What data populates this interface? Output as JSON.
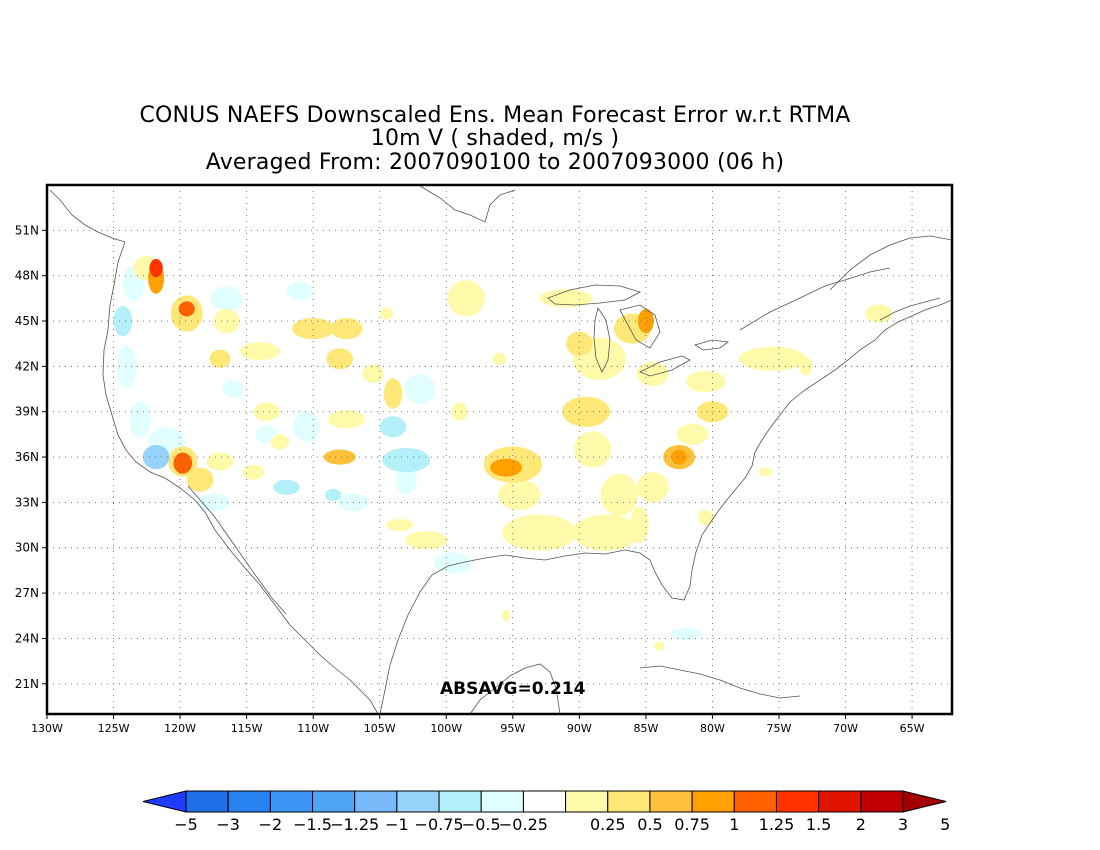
{
  "title": {
    "line1": "CONUS NAEFS Downscaled Ens. Mean Forecast Error w.r.t RTMA",
    "line2": "10m V ( shaded, m/s )",
    "line3": "Averaged From: 2007090100 to 2007093000 (06 h)"
  },
  "map": {
    "lon_range": [
      -130,
      -62
    ],
    "lat_range": [
      19,
      54
    ],
    "lat_ticks": [
      {
        "lat": 51,
        "label": "51N"
      },
      {
        "lat": 48,
        "label": "48N"
      },
      {
        "lat": 45,
        "label": "45N"
      },
      {
        "lat": 42,
        "label": "42N"
      },
      {
        "lat": 39,
        "label": "39N"
      },
      {
        "lat": 36,
        "label": "36N"
      },
      {
        "lat": 33,
        "label": "33N"
      },
      {
        "lat": 30,
        "label": "30N"
      },
      {
        "lat": 27,
        "label": "27N"
      },
      {
        "lat": 24,
        "label": "24N"
      },
      {
        "lat": 21,
        "label": "21N"
      }
    ],
    "lon_ticks": [
      {
        "lon": -130,
        "label": "130W"
      },
      {
        "lon": -125,
        "label": "125W"
      },
      {
        "lon": -120,
        "label": "120W"
      },
      {
        "lon": -115,
        "label": "115W"
      },
      {
        "lon": -110,
        "label": "110W"
      },
      {
        "lon": -105,
        "label": "105W"
      },
      {
        "lon": -100,
        "label": "100W"
      },
      {
        "lon": -95,
        "label": "95W"
      },
      {
        "lon": -90,
        "label": "90W"
      },
      {
        "lon": -85,
        "label": "85W"
      },
      {
        "lon": -80,
        "label": "80W"
      },
      {
        "lon": -75,
        "label": "75W"
      },
      {
        "lon": -70,
        "label": "70W"
      },
      {
        "lon": -65,
        "label": "65W"
      }
    ],
    "grid": true,
    "annotation": "ABSAVG=0.214"
  },
  "colorbar": {
    "units": "m/s",
    "labels": [
      "−5",
      "−3",
      "−2",
      "−1.5",
      "−1.25",
      "−1",
      "−0.75",
      "−0.5",
      "−0.25",
      "0.25",
      "0.5",
      "0.75",
      "1",
      "1.25",
      "1.5",
      "2",
      "3",
      "5"
    ],
    "colors": [
      "#1e3cff",
      "#1e6ee6",
      "#2882f0",
      "#3c96f5",
      "#50a5f5",
      "#78b9fa",
      "#96d2fa",
      "#b4f0fa",
      "#e1ffff",
      "#ffffff",
      "#fffaaa",
      "#ffe878",
      "#ffc03c",
      "#ffa000",
      "#ff6000",
      "#ff3200",
      "#e11400",
      "#c00000",
      "#a50000"
    ]
  },
  "blobs": [
    {
      "lon": -123.5,
      "lat": 47.5,
      "rx": 0.8,
      "ry": 1.2,
      "level": -1
    },
    {
      "lon": -124.3,
      "lat": 45.0,
      "rx": 0.7,
      "ry": 1.0,
      "level": -2
    },
    {
      "lon": -124.0,
      "lat": 42.0,
      "rx": 0.7,
      "ry": 1.4,
      "level": -1
    },
    {
      "lon": -123.0,
      "lat": 38.5,
      "rx": 0.8,
      "ry": 1.2,
      "level": -1
    },
    {
      "lon": -121.8,
      "lat": 36.0,
      "rx": 1.0,
      "ry": 0.8,
      "level": -3
    },
    {
      "lon": -121.0,
      "lat": 37.0,
      "rx": 1.4,
      "ry": 1.0,
      "level": -1
    },
    {
      "lon": -117.5,
      "lat": 33.0,
      "rx": 1.2,
      "ry": 0.6,
      "level": -1
    },
    {
      "lon": -116.0,
      "lat": 40.5,
      "rx": 0.8,
      "ry": 0.6,
      "level": -1
    },
    {
      "lon": -113.5,
      "lat": 37.5,
      "rx": 0.8,
      "ry": 0.6,
      "level": -1
    },
    {
      "lon": -110.5,
      "lat": 38.0,
      "rx": 1.0,
      "ry": 1.0,
      "level": -1
    },
    {
      "lon": -112.0,
      "lat": 34.0,
      "rx": 1.0,
      "ry": 0.5,
      "level": -2
    },
    {
      "lon": -107.0,
      "lat": 33.0,
      "rx": 1.2,
      "ry": 0.6,
      "level": -1
    },
    {
      "lon": -104.0,
      "lat": 38.0,
      "rx": 1.0,
      "ry": 0.7,
      "level": -2
    },
    {
      "lon": -103.0,
      "lat": 35.8,
      "rx": 1.8,
      "ry": 0.8,
      "level": -2
    },
    {
      "lon": -103.0,
      "lat": 34.5,
      "rx": 0.8,
      "ry": 1.0,
      "level": -1
    },
    {
      "lon": -102.0,
      "lat": 40.5,
      "rx": 1.2,
      "ry": 1.0,
      "level": -1
    },
    {
      "lon": -99.5,
      "lat": 29.0,
      "rx": 1.4,
      "ry": 0.7,
      "level": -1
    },
    {
      "lon": -111.0,
      "lat": 47.0,
      "rx": 1.0,
      "ry": 0.6,
      "level": -1
    },
    {
      "lon": -116.5,
      "lat": 46.5,
      "rx": 1.2,
      "ry": 0.8,
      "level": -1
    },
    {
      "lon": -82.0,
      "lat": 24.3,
      "rx": 1.2,
      "ry": 0.4,
      "level": -1
    },
    {
      "lon": -108.5,
      "lat": 33.5,
      "rx": 0.6,
      "ry": 0.4,
      "level": -2
    },
    {
      "lon": -122.5,
      "lat": 48.5,
      "rx": 1.0,
      "ry": 0.8,
      "level": 1
    },
    {
      "lon": -121.8,
      "lat": 47.8,
      "rx": 0.6,
      "ry": 1.0,
      "level": 4
    },
    {
      "lon": -121.8,
      "lat": 48.5,
      "rx": 0.5,
      "ry": 0.6,
      "level": 6
    },
    {
      "lon": -119.5,
      "lat": 45.5,
      "rx": 1.2,
      "ry": 1.2,
      "level": 2
    },
    {
      "lon": -119.5,
      "lat": 45.8,
      "rx": 0.6,
      "ry": 0.5,
      "level": 5
    },
    {
      "lon": -116.5,
      "lat": 45.0,
      "rx": 1.0,
      "ry": 0.8,
      "level": 1
    },
    {
      "lon": -114.0,
      "lat": 43.0,
      "rx": 1.5,
      "ry": 0.6,
      "level": 1
    },
    {
      "lon": -117.0,
      "lat": 42.5,
      "rx": 0.8,
      "ry": 0.6,
      "level": 2
    },
    {
      "lon": -110.0,
      "lat": 44.5,
      "rx": 1.6,
      "ry": 0.7,
      "level": 2
    },
    {
      "lon": -107.5,
      "lat": 44.5,
      "rx": 1.2,
      "ry": 0.7,
      "level": 2
    },
    {
      "lon": -108.0,
      "lat": 42.5,
      "rx": 1.0,
      "ry": 0.7,
      "level": 2
    },
    {
      "lon": -105.5,
      "lat": 41.5,
      "rx": 0.8,
      "ry": 0.6,
      "level": 1
    },
    {
      "lon": -104.0,
      "lat": 40.2,
      "rx": 0.7,
      "ry": 1.0,
      "level": 2
    },
    {
      "lon": -98.5,
      "lat": 46.5,
      "rx": 1.4,
      "ry": 1.2,
      "level": 1
    },
    {
      "lon": -107.5,
      "lat": 38.5,
      "rx": 1.4,
      "ry": 0.6,
      "level": 1
    },
    {
      "lon": -108.0,
      "lat": 36.0,
      "rx": 1.2,
      "ry": 0.5,
      "level": 3
    },
    {
      "lon": -113.5,
      "lat": 39.0,
      "rx": 1.0,
      "ry": 0.6,
      "level": 1
    },
    {
      "lon": -119.8,
      "lat": 35.7,
      "rx": 1.1,
      "ry": 1.0,
      "level": 2
    },
    {
      "lon": -119.8,
      "lat": 35.6,
      "rx": 0.7,
      "ry": 0.7,
      "level": 5
    },
    {
      "lon": -118.5,
      "lat": 34.5,
      "rx": 1.0,
      "ry": 0.8,
      "level": 2
    },
    {
      "lon": -117.0,
      "lat": 35.7,
      "rx": 1.0,
      "ry": 0.6,
      "level": 1
    },
    {
      "lon": -114.5,
      "lat": 35.0,
      "rx": 0.8,
      "ry": 0.5,
      "level": 1
    },
    {
      "lon": -112.5,
      "lat": 37.0,
      "rx": 0.7,
      "ry": 0.5,
      "level": 1
    },
    {
      "lon": -103.5,
      "lat": 31.5,
      "rx": 1.0,
      "ry": 0.4,
      "level": 1
    },
    {
      "lon": -101.5,
      "lat": 30.5,
      "rx": 1.6,
      "ry": 0.6,
      "level": 1
    },
    {
      "lon": -95.0,
      "lat": 35.5,
      "rx": 2.2,
      "ry": 1.2,
      "level": 2
    },
    {
      "lon": -95.5,
      "lat": 35.3,
      "rx": 1.2,
      "ry": 0.6,
      "level": 4
    },
    {
      "lon": -94.5,
      "lat": 33.5,
      "rx": 1.6,
      "ry": 1.0,
      "level": 1
    },
    {
      "lon": -93.0,
      "lat": 31.0,
      "rx": 2.8,
      "ry": 1.2,
      "level": 1
    },
    {
      "lon": -88.0,
      "lat": 31.0,
      "rx": 2.5,
      "ry": 1.2,
      "level": 1
    },
    {
      "lon": -87.0,
      "lat": 33.5,
      "rx": 1.4,
      "ry": 1.4,
      "level": 1
    },
    {
      "lon": -89.0,
      "lat": 36.5,
      "rx": 1.4,
      "ry": 1.2,
      "level": 1
    },
    {
      "lon": -89.5,
      "lat": 39.0,
      "rx": 1.8,
      "ry": 1.0,
      "level": 2
    },
    {
      "lon": -88.5,
      "lat": 42.5,
      "rx": 2.0,
      "ry": 1.4,
      "level": 1
    },
    {
      "lon": -90.0,
      "lat": 43.5,
      "rx": 1.0,
      "ry": 0.8,
      "level": 2
    },
    {
      "lon": -86.0,
      "lat": 44.5,
      "rx": 1.4,
      "ry": 1.0,
      "level": 2
    },
    {
      "lon": -85.0,
      "lat": 45.0,
      "rx": 0.6,
      "ry": 0.8,
      "level": 4
    },
    {
      "lon": -91.0,
      "lat": 46.5,
      "rx": 2.0,
      "ry": 0.6,
      "level": 1
    },
    {
      "lon": -84.5,
      "lat": 41.5,
      "rx": 1.2,
      "ry": 0.8,
      "level": 1
    },
    {
      "lon": -82.5,
      "lat": 36.0,
      "rx": 1.2,
      "ry": 0.8,
      "level": 3
    },
    {
      "lon": -82.5,
      "lat": 36.0,
      "rx": 0.6,
      "ry": 0.5,
      "level": 4
    },
    {
      "lon": -81.5,
      "lat": 37.5,
      "rx": 1.2,
      "ry": 0.7,
      "level": 1
    },
    {
      "lon": -80.0,
      "lat": 39.0,
      "rx": 1.2,
      "ry": 0.7,
      "level": 2
    },
    {
      "lon": -80.5,
      "lat": 41.0,
      "rx": 1.5,
      "ry": 0.7,
      "level": 1
    },
    {
      "lon": -84.5,
      "lat": 34.0,
      "rx": 1.2,
      "ry": 1.0,
      "level": 1
    },
    {
      "lon": -85.5,
      "lat": 31.5,
      "rx": 0.7,
      "ry": 1.2,
      "level": 1
    },
    {
      "lon": -75.5,
      "lat": 42.5,
      "rx": 2.5,
      "ry": 0.8,
      "level": 1
    },
    {
      "lon": -73.0,
      "lat": 42.0,
      "rx": 0.5,
      "ry": 0.6,
      "level": 1
    },
    {
      "lon": -67.5,
      "lat": 45.5,
      "rx": 1.0,
      "ry": 0.6,
      "level": 1
    },
    {
      "lon": -95.5,
      "lat": 25.5,
      "rx": 0.3,
      "ry": 0.4,
      "level": 1
    },
    {
      "lon": -84.0,
      "lat": 23.5,
      "rx": 0.4,
      "ry": 0.3,
      "level": 1
    },
    {
      "lon": -76.0,
      "lat": 35.0,
      "rx": 0.5,
      "ry": 0.3,
      "level": 1
    },
    {
      "lon": -80.5,
      "lat": 32.0,
      "rx": 0.6,
      "ry": 0.5,
      "level": 1
    },
    {
      "lon": -104.5,
      "lat": 45.5,
      "rx": 0.5,
      "ry": 0.4,
      "level": 1
    },
    {
      "lon": -99.0,
      "lat": 39.0,
      "rx": 0.6,
      "ry": 0.6,
      "level": 1
    },
    {
      "lon": -96.0,
      "lat": 42.5,
      "rx": 0.5,
      "ry": 0.4,
      "level": 1
    }
  ]
}
